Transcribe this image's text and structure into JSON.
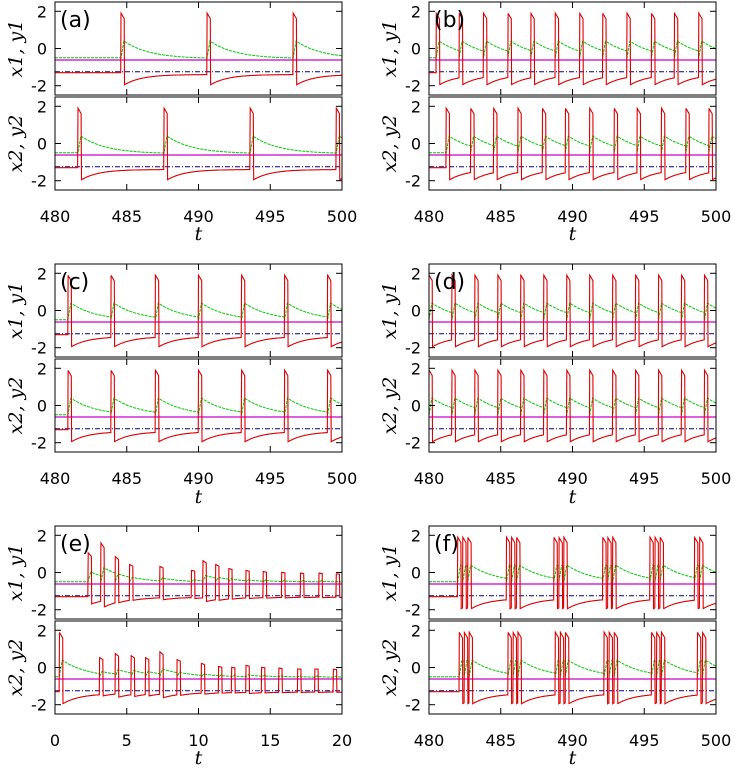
{
  "colors": {
    "x": "#dd0000",
    "y": "#00cc00",
    "magenta": "#cc00cc",
    "blue": "#00008b",
    "frame": "#000000"
  },
  "chart_data": [
    {
      "type": "line",
      "panel": "(a)",
      "xlabel": "t",
      "ylabel_top": "x1, y1",
      "ylabel_bottom": "x2, y2",
      "xlim": [
        480,
        500
      ],
      "ylim": [
        -2.5,
        2.5
      ],
      "xticks": [
        480,
        485,
        490,
        495,
        500
      ],
      "yticks": [
        -2,
        0,
        2
      ],
      "xtick_labels": [
        "480",
        "485",
        "490",
        "495",
        "500"
      ],
      "ytick_labels": [
        "-2",
        "0",
        "2"
      ],
      "hlines": {
        "magenta": -0.62,
        "blue": -1.25
      },
      "top": {
        "spikes": [
          [
            484.6,
            1
          ],
          [
            490.6,
            1
          ],
          [
            496.6,
            1
          ]
        ]
      },
      "bottom": {
        "spikes": [
          [
            481.6,
            1
          ],
          [
            487.6,
            1
          ],
          [
            493.6,
            1
          ],
          [
            499.6,
            1
          ]
        ]
      }
    },
    {
      "type": "line",
      "panel": "(b)",
      "xlabel": "t",
      "ylabel_top": "x1, y1",
      "ylabel_bottom": "x2, y2",
      "xlim": [
        480,
        500
      ],
      "ylim": [
        -2.5,
        2.5
      ],
      "xticks": [
        480,
        485,
        490,
        495,
        500
      ],
      "yticks": [
        -2,
        0,
        2
      ],
      "xtick_labels": [
        "480",
        "485",
        "490",
        "495",
        "500"
      ],
      "ytick_labels": [
        "-2",
        "0",
        "2"
      ],
      "hlines": {
        "magenta": -0.62,
        "blue": -1.25
      },
      "top": {
        "spikes": [
          [
            480.5,
            1
          ],
          [
            482.1,
            1
          ],
          [
            483.8,
            1
          ],
          [
            485.5,
            1
          ],
          [
            487.1,
            1
          ],
          [
            488.8,
            1
          ],
          [
            490.5,
            1
          ],
          [
            492.1,
            1
          ],
          [
            493.8,
            1
          ],
          [
            495.5,
            1
          ],
          [
            497.1,
            1
          ],
          [
            498.8,
            1
          ]
        ]
      },
      "bottom": {
        "spikes": [
          [
            481.2,
            1
          ],
          [
            482.9,
            1
          ],
          [
            484.5,
            1
          ],
          [
            486.2,
            1
          ],
          [
            487.9,
            1
          ],
          [
            489.5,
            1
          ],
          [
            491.2,
            1
          ],
          [
            492.9,
            1
          ],
          [
            494.5,
            1
          ],
          [
            496.2,
            1
          ],
          [
            497.9,
            1
          ],
          [
            499.5,
            1
          ]
        ]
      }
    },
    {
      "type": "line",
      "panel": "(c)",
      "xlabel": "t",
      "ylabel_top": "x1, y1",
      "ylabel_bottom": "x2, y2",
      "xlim": [
        480,
        500
      ],
      "ylim": [
        -2.5,
        2.5
      ],
      "xticks": [
        480,
        485,
        490,
        495,
        500
      ],
      "yticks": [
        -2,
        0,
        2
      ],
      "xtick_labels": [
        "480",
        "485",
        "490",
        "495",
        "500"
      ],
      "ytick_labels": [
        "-2",
        "0",
        "2"
      ],
      "hlines": {
        "magenta": -0.62,
        "blue": -1.25
      },
      "top": {
        "spikes": [
          [
            480.9,
            1
          ],
          [
            483.9,
            1
          ],
          [
            487.0,
            1
          ],
          [
            490.0,
            1
          ],
          [
            493.0,
            1
          ],
          [
            496.0,
            1
          ],
          [
            499.0,
            1
          ]
        ]
      },
      "bottom": {
        "spikes": [
          [
            480.9,
            1
          ],
          [
            483.9,
            1
          ],
          [
            487.0,
            1
          ],
          [
            490.0,
            1
          ],
          [
            493.0,
            1
          ],
          [
            496.0,
            1
          ],
          [
            499.0,
            1
          ]
        ]
      }
    },
    {
      "type": "line",
      "panel": "(d)",
      "xlabel": "t",
      "ylabel_top": "x1, y1",
      "ylabel_bottom": "x2, y2",
      "xlim": [
        480,
        500
      ],
      "ylim": [
        -2.5,
        2.5
      ],
      "xticks": [
        480,
        485,
        490,
        495,
        500
      ],
      "yticks": [
        -2,
        0,
        2
      ],
      "xtick_labels": [
        "480",
        "485",
        "490",
        "495",
        "500"
      ],
      "ytick_labels": [
        "-2",
        "0",
        "2"
      ],
      "hlines": {
        "magenta": -0.62,
        "blue": -1.25
      },
      "top": {
        "spikes": [
          [
            480.0,
            1
          ],
          [
            481.6,
            1
          ],
          [
            483.2,
            1
          ],
          [
            484.8,
            1
          ],
          [
            486.4,
            1
          ],
          [
            488.0,
            1
          ],
          [
            489.6,
            1
          ],
          [
            491.2,
            1
          ],
          [
            492.8,
            1
          ],
          [
            494.4,
            1
          ],
          [
            496.0,
            1
          ],
          [
            497.6,
            1
          ],
          [
            499.2,
            1
          ]
        ]
      },
      "bottom": {
        "spikes": [
          [
            480.0,
            1
          ],
          [
            481.6,
            1
          ],
          [
            483.2,
            1
          ],
          [
            484.8,
            1
          ],
          [
            486.4,
            1
          ],
          [
            488.0,
            1
          ],
          [
            489.6,
            1
          ],
          [
            491.2,
            1
          ],
          [
            492.8,
            1
          ],
          [
            494.4,
            1
          ],
          [
            496.0,
            1
          ],
          [
            497.6,
            1
          ],
          [
            499.2,
            1
          ]
        ]
      }
    },
    {
      "type": "line",
      "panel": "(e)",
      "xlabel": "t",
      "ylabel_top": "x1, y1",
      "ylabel_bottom": "x2, y2",
      "xlim": [
        0,
        20
      ],
      "ylim": [
        -2.5,
        2.5
      ],
      "xticks": [
        0,
        5,
        10,
        15,
        20
      ],
      "yticks": [
        -2,
        0,
        2
      ],
      "xtick_labels": [
        "0",
        "5",
        "10",
        "15",
        "20"
      ],
      "ytick_labels": [
        "-2",
        "0",
        "2"
      ],
      "hlines": {
        "magenta": -0.62,
        "blue": -1.25
      },
      "top": {
        "spikes": [
          [
            2.3,
            0.6
          ],
          [
            3.2,
            0.85
          ],
          [
            4.2,
            0.5
          ],
          [
            5.2,
            0.3
          ],
          [
            7.3,
            0.25
          ],
          [
            9.5,
            0.15
          ],
          [
            10.3,
            0.4
          ],
          [
            11.2,
            0.3
          ],
          [
            12.1,
            0.2
          ],
          [
            13.3,
            0.15
          ],
          [
            14.5,
            0.12
          ],
          [
            15.8,
            0.1
          ],
          [
            17.1,
            0.08
          ],
          [
            18.4,
            0.08
          ],
          [
            19.6,
            0.06
          ]
        ]
      },
      "bottom": {
        "spikes": [
          [
            0.3,
            1
          ],
          [
            3.1,
            0.35
          ],
          [
            4.2,
            0.45
          ],
          [
            5.3,
            0.4
          ],
          [
            6.3,
            0.35
          ],
          [
            7.3,
            0.5
          ],
          [
            8.5,
            0.3
          ],
          [
            10.2,
            0.2
          ],
          [
            11.4,
            0.12
          ],
          [
            12.3,
            0.1
          ],
          [
            13.3,
            0.15
          ],
          [
            14.4,
            0.1
          ],
          [
            15.6,
            0.08
          ],
          [
            16.9,
            0.06
          ],
          [
            18.1,
            0.06
          ],
          [
            19.4,
            0.05
          ]
        ]
      }
    },
    {
      "type": "line",
      "panel": "(f)",
      "xlabel": "t",
      "ylabel_top": "x1, y1",
      "ylabel_bottom": "x2, y2",
      "xlim": [
        480,
        500
      ],
      "ylim": [
        -2.5,
        2.5
      ],
      "xticks": [
        480,
        485,
        490,
        495,
        500
      ],
      "yticks": [
        -2,
        0,
        2
      ],
      "xtick_labels": [
        "480",
        "485",
        "490",
        "495",
        "500"
      ],
      "ytick_labels": [
        "-2",
        "0",
        "2"
      ],
      "hlines": {
        "magenta": -0.62,
        "blue": -1.25
      },
      "top": {
        "spikes": [
          [
            482.0,
            1
          ],
          [
            482.35,
            1
          ],
          [
            482.7,
            1
          ],
          [
            485.4,
            1
          ],
          [
            485.75,
            1
          ],
          [
            486.1,
            1
          ],
          [
            488.7,
            1
          ],
          [
            489.05,
            1
          ],
          [
            489.4,
            1
          ],
          [
            492.1,
            1
          ],
          [
            492.45,
            1
          ],
          [
            492.8,
            1
          ],
          [
            495.4,
            1
          ],
          [
            495.75,
            1
          ],
          [
            496.1,
            1
          ],
          [
            498.5,
            1
          ],
          [
            498.85,
            1
          ]
        ]
      },
      "bottom": {
        "spikes": [
          [
            482.1,
            1
          ],
          [
            482.45,
            1
          ],
          [
            482.8,
            1
          ],
          [
            485.5,
            1
          ],
          [
            485.85,
            1
          ],
          [
            486.2,
            1
          ],
          [
            488.8,
            1
          ],
          [
            489.15,
            1
          ],
          [
            489.5,
            1
          ],
          [
            492.2,
            1
          ],
          [
            492.55,
            1
          ],
          [
            492.9,
            1
          ],
          [
            495.5,
            1
          ],
          [
            495.85,
            1
          ],
          [
            496.2,
            1
          ],
          [
            498.7,
            1
          ],
          [
            499.05,
            1
          ]
        ]
      }
    }
  ]
}
